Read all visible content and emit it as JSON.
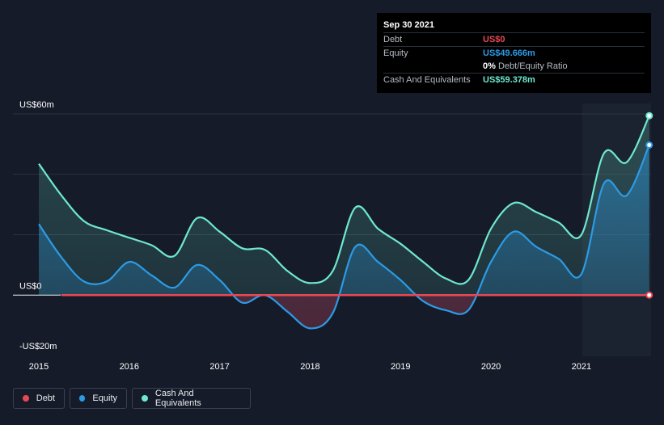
{
  "tooltip": {
    "date": "Sep 30 2021",
    "debt_label": "Debt",
    "debt_value": "US$0",
    "equity_label": "Equity",
    "equity_value": "US$49.666m",
    "ratio_value": "0%",
    "ratio_label": "Debt/Equity Ratio",
    "cash_label": "Cash And Equivalents",
    "cash_value": "US$59.378m"
  },
  "legend": {
    "debt": "Debt",
    "equity": "Equity",
    "cash": "Cash And Equivalents"
  },
  "colors": {
    "debt": "#e84855",
    "equity": "#2b9be6",
    "cash": "#6ee8d0",
    "background": "#151b28"
  },
  "chart_data": {
    "type": "line",
    "title": "",
    "xlabel": "",
    "ylabel": "",
    "ylim": [
      -20,
      60
    ],
    "xlim": [
      2015,
      2021.77
    ],
    "y_ticks": [
      {
        "value": 60,
        "label": "US$60m"
      },
      {
        "value": 0,
        "label": "US$0"
      },
      {
        "value": -20,
        "label": "-US$20m"
      }
    ],
    "x_ticks": [
      {
        "value": 2015,
        "label": "2015"
      },
      {
        "value": 2016,
        "label": "2016"
      },
      {
        "value": 2017,
        "label": "2017"
      },
      {
        "value": 2018,
        "label": "2018"
      },
      {
        "value": 2019,
        "label": "2019"
      },
      {
        "value": 2020,
        "label": "2020"
      },
      {
        "value": 2021,
        "label": "2021"
      }
    ],
    "gridlines": [
      60,
      40,
      20,
      0
    ],
    "series": [
      {
        "name": "Cash And Equivalents",
        "key": "cash",
        "x": [
          2015.0,
          2015.25,
          2015.5,
          2015.75,
          2016.0,
          2016.25,
          2016.5,
          2016.75,
          2017.0,
          2017.25,
          2017.5,
          2017.75,
          2018.0,
          2018.25,
          2018.5,
          2018.75,
          2019.0,
          2019.25,
          2019.5,
          2019.75,
          2020.0,
          2020.25,
          2020.5,
          2020.75,
          2021.0,
          2021.25,
          2021.5,
          2021.75
        ],
        "values": [
          43.5,
          33,
          24.5,
          21.5,
          19,
          16.5,
          13,
          25.5,
          21,
          15.5,
          15,
          8,
          4,
          8,
          29,
          22,
          17,
          11,
          5.5,
          5,
          22,
          30.5,
          27.5,
          24,
          20,
          47,
          44,
          59.4
        ]
      },
      {
        "name": "Equity",
        "key": "equity",
        "x": [
          2015.0,
          2015.25,
          2015.5,
          2015.75,
          2016.0,
          2016.25,
          2016.5,
          2016.75,
          2017.0,
          2017.25,
          2017.5,
          2017.75,
          2018.0,
          2018.25,
          2018.5,
          2018.75,
          2019.0,
          2019.25,
          2019.5,
          2019.75,
          2020.0,
          2020.25,
          2020.5,
          2020.75,
          2021.0,
          2021.25,
          2021.5,
          2021.75
        ],
        "values": [
          23.5,
          12.5,
          4.5,
          4.5,
          11,
          6.5,
          2.5,
          10,
          5,
          -2.5,
          0,
          -5.5,
          -11,
          -6,
          16,
          11,
          5,
          -2,
          -5,
          -5,
          11,
          21,
          16,
          12,
          7,
          37,
          33,
          49.7
        ]
      },
      {
        "name": "Debt",
        "key": "debt",
        "x": [
          2015.25,
          2021.75
        ],
        "values": [
          0,
          0
        ]
      }
    ]
  }
}
